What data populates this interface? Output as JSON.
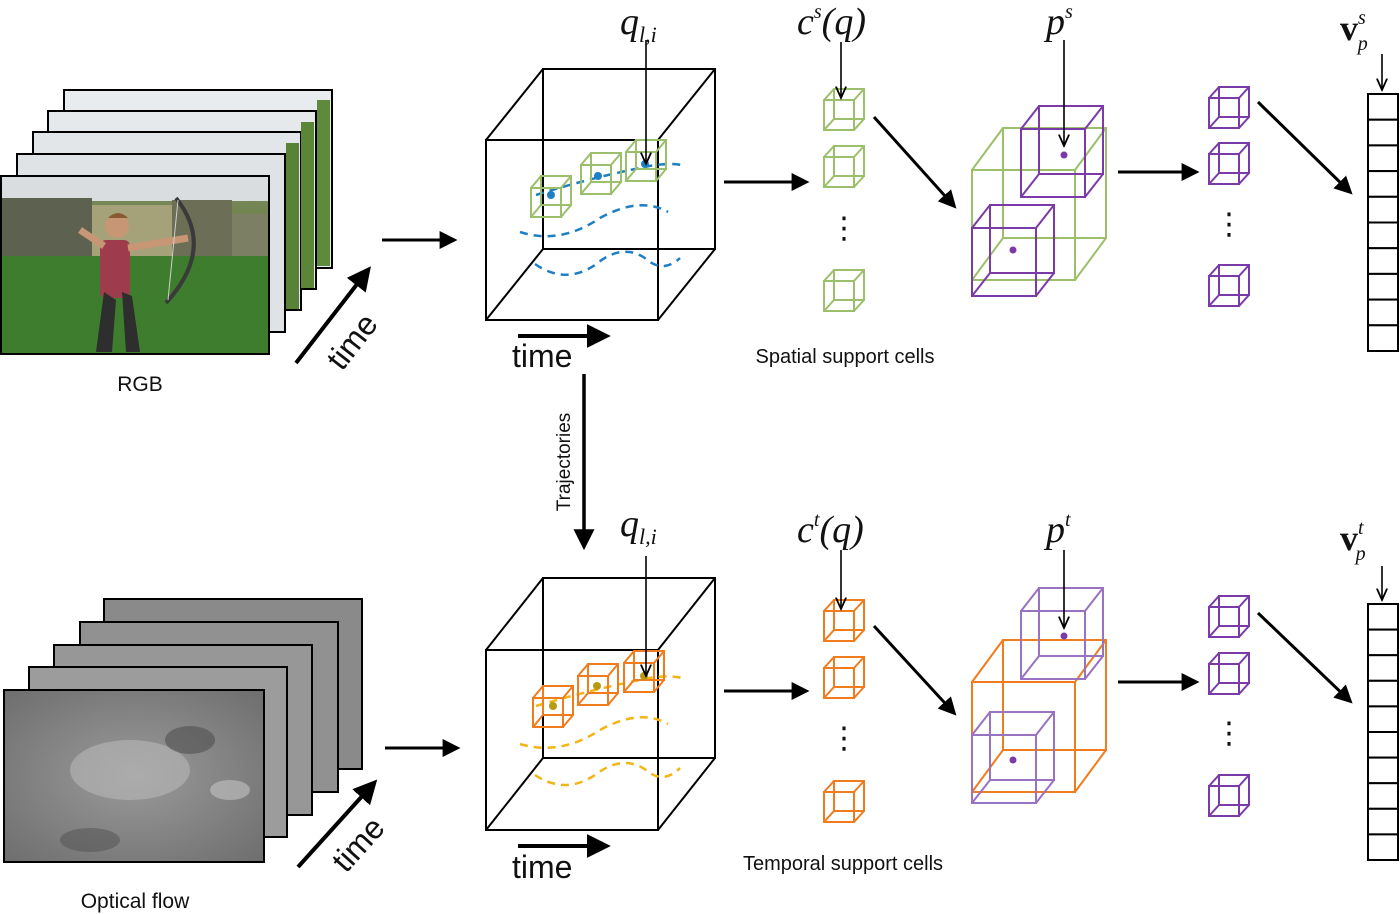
{
  "labels": {
    "rgb": "RGB",
    "optical_flow": "Optical flow",
    "time": "time",
    "trajectories": "Trajectories",
    "spatial_support_cells": "Spatial support cells",
    "temporal_support_cells": "Temporal support cells",
    "q_main": "q",
    "q_sub": "l,i",
    "c_main": "c",
    "c_s_sup": "s",
    "c_t_sup": "t",
    "c_arg": "(q)",
    "p_main": "p",
    "p_s_sup": "s",
    "p_t_sup": "t",
    "v_main": "v",
    "v_s_sup": "s",
    "v_t_sup": "t",
    "v_sub": "p",
    "dots": "⋮"
  },
  "colors": {
    "spatial_cell": "#9bbf6a",
    "temporal_cell": "#f07c1e",
    "pooled_cell": "#7a3aa8",
    "pooled_cell_light": "#9a72c2",
    "trajectory_spatial": "#1f7fc4",
    "trajectory_temporal": "#f2b515",
    "trajectory_point_temporal": "#b89a10",
    "line": "#000000"
  },
  "icons": {
    "rgb_frames": "rgb-frame-stack-icon",
    "flow_frames": "optical-flow-frame-stack-icon",
    "volume": "video-volume-cube-icon",
    "cell": "support-cell-cube-icon",
    "vector": "feature-vector-icon"
  },
  "vector_cells": 10
}
